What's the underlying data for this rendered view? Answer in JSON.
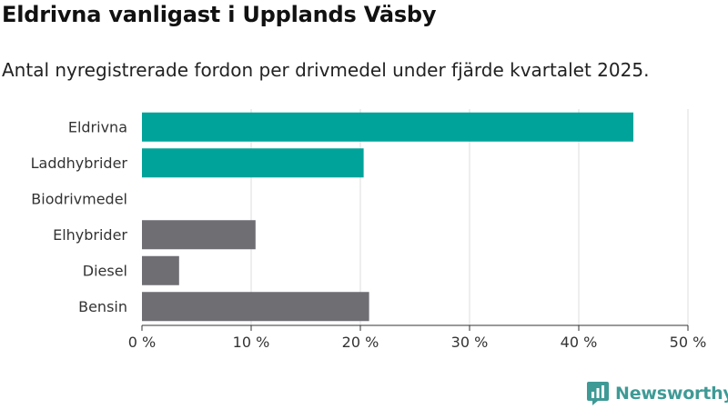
{
  "header": {
    "title": "Eldrivna vanligast i Upplands Väsby",
    "subtitle": "Antal nyregistrerade fordon per drivmedel under fjärde kvartalet 2025."
  },
  "brand": {
    "name": "Newsworthy",
    "icon": "newsworthy-logo-icon"
  },
  "colors": {
    "highlight": "#00a39a",
    "neutral": "#6e6e73",
    "grid": "#dddddd",
    "axis": "#333333",
    "brand": "#3f9a96"
  },
  "chart_data": {
    "type": "bar",
    "orientation": "horizontal",
    "categories": [
      "Eldrivna",
      "Laddhybrider",
      "Biodrivmedel",
      "Elhybrider",
      "Diesel",
      "Bensin"
    ],
    "values": [
      45,
      20.3,
      0,
      10.4,
      3.4,
      20.8
    ],
    "bar_colors": [
      "highlight",
      "highlight",
      "highlight",
      "neutral",
      "neutral",
      "neutral"
    ],
    "xlim": [
      0,
      50
    ],
    "x_ticks": [
      0,
      10,
      20,
      30,
      40,
      50
    ],
    "x_tick_labels": [
      "0 %",
      "10 %",
      "20 %",
      "30 %",
      "40 %",
      "50 %"
    ],
    "xlabel": "",
    "ylabel": "",
    "grid": "vertical"
  }
}
